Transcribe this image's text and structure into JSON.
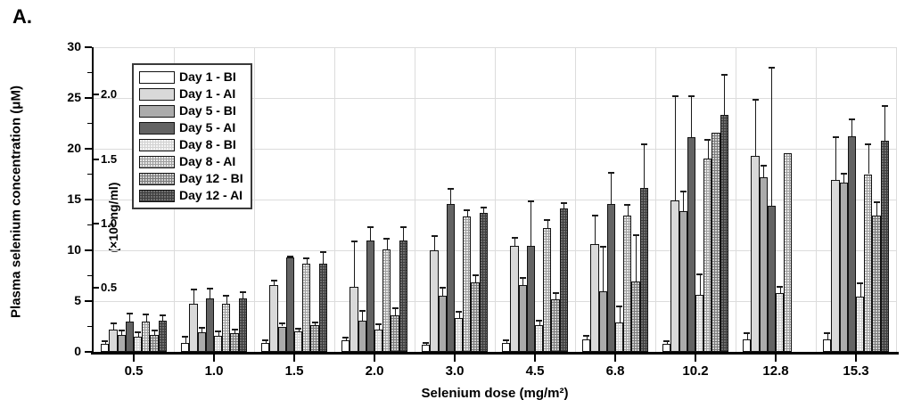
{
  "panel_label": "A.",
  "y_axis": {
    "title": "Plasma selenium concentration (μM)",
    "ticks": [
      0,
      5,
      10,
      15,
      20,
      25,
      30
    ],
    "minor_step": 2.5,
    "max": 30
  },
  "y2_axis": {
    "label": "(×10³ ng/ml)",
    "ticks": [
      {
        "label": "0.5",
        "value": 6.33
      },
      {
        "label": "1.0",
        "value": 12.66
      },
      {
        "label": "1.5",
        "value": 18.99
      },
      {
        "label": "2.0",
        "value": 25.32
      }
    ]
  },
  "x_axis": {
    "title": "Selenium dose (mg/m²)",
    "categories": [
      "0.5",
      "1.0",
      "1.5",
      "2.0",
      "3.0",
      "4.5",
      "6.8",
      "10.2",
      "12.8",
      "15.3"
    ]
  },
  "legend": [
    {
      "label": "Day 1 - BI",
      "style": "d1bi"
    },
    {
      "label": "Day 1 - AI",
      "style": "d1ai"
    },
    {
      "label": "Day 5 - BI",
      "style": "d5bi"
    },
    {
      "label": "Day 5 - AI",
      "style": "d5ai"
    },
    {
      "label": "Day 8 - BI",
      "style": "d8bi"
    },
    {
      "label": "Day 8 - AI",
      "style": "d8ai"
    },
    {
      "label": "Day 12 - BI",
      "style": "d12bi"
    },
    {
      "label": "Day 12 - AI",
      "style": "d12ai"
    }
  ],
  "chart_data": {
    "type": "bar",
    "title": "",
    "xlabel": "Selenium dose (mg/m²)",
    "ylabel": "Plasma selenium concentration (μM)",
    "ylabel_secondary": "(×10³ ng/ml)",
    "ylim": [
      0,
      30
    ],
    "grid": true,
    "legend_position": "upper-left-inside",
    "categories": [
      "0.5",
      "1.0",
      "1.5",
      "2.0",
      "3.0",
      "4.5",
      "6.8",
      "10.2",
      "12.8",
      "15.3"
    ],
    "series": [
      {
        "name": "Day 1 - BI",
        "style": "d1bi",
        "values": [
          0.8,
          0.9,
          0.9,
          1.1,
          0.7,
          0.9,
          1.2,
          0.8,
          1.2,
          1.2
        ],
        "err_top": [
          1.1,
          1.6,
          1.2,
          1.5,
          1.0,
          1.2,
          1.7,
          1.1,
          1.9,
          1.9
        ]
      },
      {
        "name": "Day 1 - AI",
        "style": "d1ai",
        "values": [
          2.2,
          4.7,
          6.6,
          6.4,
          10.0,
          10.4,
          10.6,
          14.9,
          19.3,
          16.9
        ],
        "err_top": [
          2.9,
          6.2,
          7.1,
          11.0,
          11.5,
          11.3,
          13.5,
          25.3,
          24.9,
          21.2
        ]
      },
      {
        "name": "Day 5 - BI",
        "style": "d5bi",
        "values": [
          1.7,
          1.9,
          2.5,
          3.1,
          5.5,
          6.6,
          6.0,
          13.9,
          17.2,
          16.7
        ],
        "err_top": [
          2.2,
          2.5,
          2.9,
          4.1,
          6.4,
          7.4,
          10.4,
          15.9,
          18.4,
          17.6
        ]
      },
      {
        "name": "Day 5 - AI",
        "style": "d5ai",
        "values": [
          3.0,
          5.3,
          9.3,
          11.0,
          14.6,
          10.4,
          14.6,
          21.1,
          14.4,
          21.2
        ],
        "err_top": [
          3.9,
          6.3,
          9.5,
          12.4,
          16.1,
          14.9,
          17.7,
          25.3,
          28.1,
          23.0
        ]
      },
      {
        "name": "Day 8 - BI",
        "style": "d8bi",
        "values": [
          1.5,
          1.6,
          2.0,
          2.2,
          3.3,
          2.6,
          2.9,
          5.6,
          5.8,
          5.4
        ],
        "err_top": [
          2.0,
          2.1,
          2.4,
          2.8,
          4.0,
          3.2,
          4.6,
          7.7,
          6.5,
          6.8
        ]
      },
      {
        "name": "Day 8 - AI",
        "style": "d8ai",
        "values": [
          3.0,
          4.7,
          8.7,
          10.1,
          13.3,
          12.2,
          13.4,
          19.0,
          19.6,
          17.5
        ],
        "err_top": [
          3.8,
          5.6,
          9.3,
          11.2,
          14.0,
          13.1,
          14.6,
          21.0,
          null,
          20.5
        ]
      },
      {
        "name": "Day 12 - BI",
        "style": "d12bi",
        "values": [
          1.7,
          1.8,
          2.6,
          3.6,
          6.8,
          5.2,
          6.9,
          21.6,
          null,
          13.4
        ],
        "err_top": [
          2.2,
          2.3,
          3.0,
          4.4,
          7.6,
          5.9,
          11.6,
          null,
          null,
          14.8
        ]
      },
      {
        "name": "Day 12 - AI",
        "style": "d12ai",
        "values": [
          3.1,
          5.3,
          8.7,
          11.0,
          13.7,
          14.1,
          16.1,
          23.3,
          null,
          20.8
        ],
        "err_top": [
          3.7,
          6.0,
          9.9,
          12.4,
          14.3,
          14.7,
          20.5,
          27.4,
          null,
          24.3
        ]
      }
    ]
  }
}
